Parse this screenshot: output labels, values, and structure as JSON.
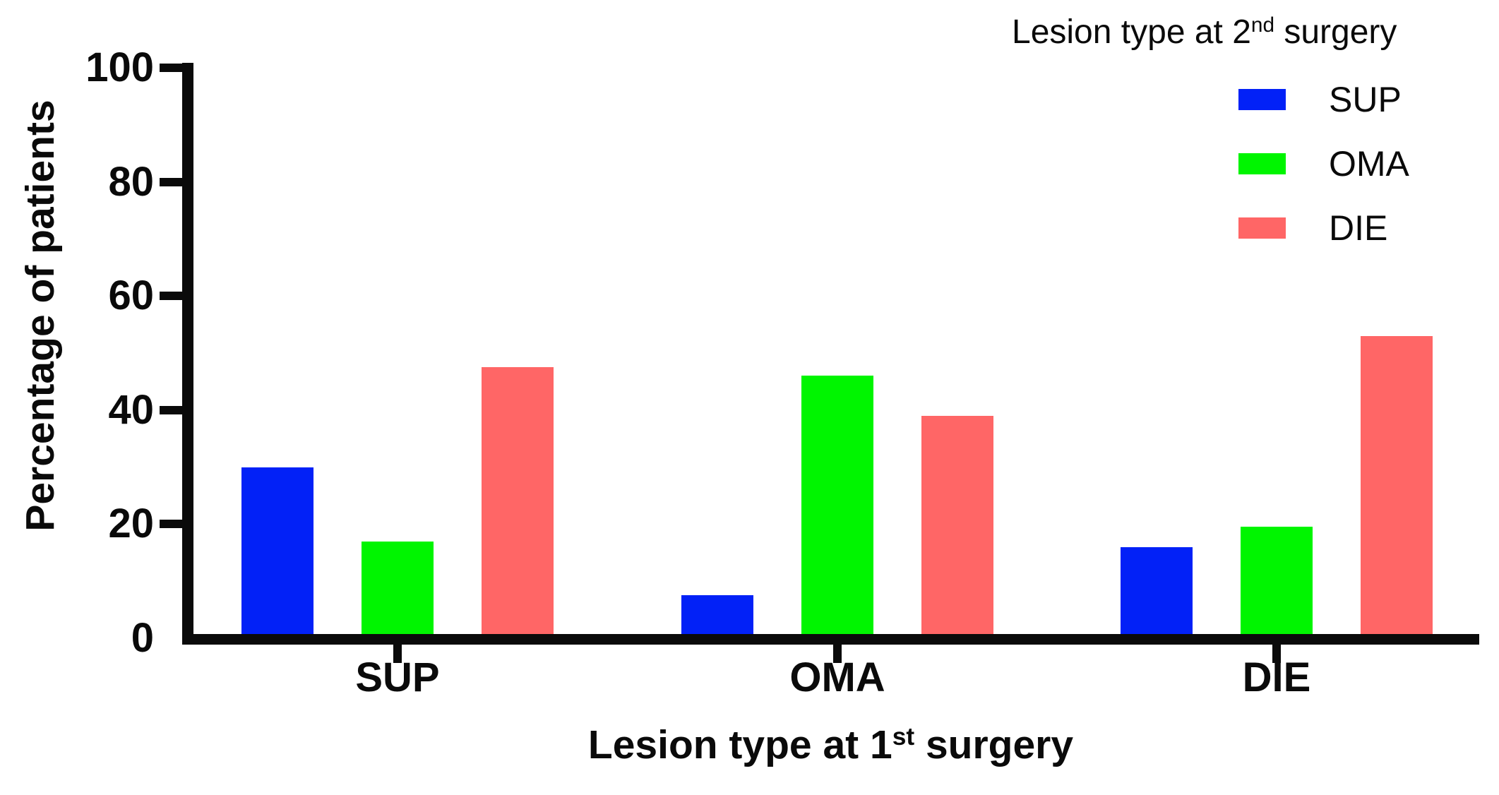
{
  "figure": {
    "background": "#ffffff",
    "text_color": "#0a0a0a",
    "x_axis": {
      "title_prefix": "Lesion type at 1",
      "title_sup": "st",
      "title_suffix": " surgery"
    },
    "legend": {
      "title_prefix": "Lesion type at 2",
      "title_sup": "nd",
      "title_suffix": " surgery"
    }
  },
  "chart_data": {
    "type": "bar",
    "title": "",
    "xlabel": "Lesion type at 1st surgery",
    "ylabel": "Percentage of patients",
    "legend_title": "Lesion type at 2nd surgery",
    "legend_position": "top-right",
    "grid": false,
    "categories": [
      "SUP",
      "OMA",
      "DIE"
    ],
    "series": [
      {
        "name": "SUP",
        "color": "#0221f7",
        "values": [
          30,
          7.5,
          16
        ]
      },
      {
        "name": "OMA",
        "color": "#00f500",
        "values": [
          17,
          46,
          19.5
        ]
      },
      {
        "name": "DIE",
        "color": "#ff6666",
        "values": [
          47.5,
          39,
          53
        ]
      }
    ],
    "ylim": [
      0,
      100
    ],
    "yticks": [
      0,
      20,
      40,
      60,
      80,
      100
    ]
  }
}
